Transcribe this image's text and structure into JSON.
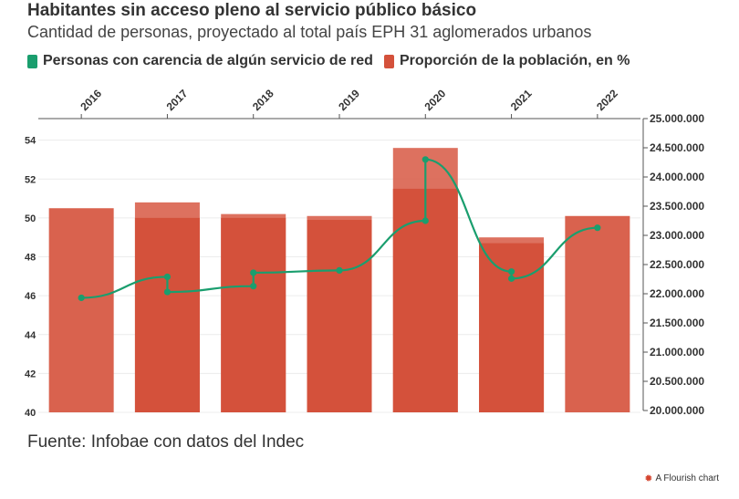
{
  "header": {
    "title": "Habitantes sin acceso pleno al servicio público básico",
    "subtitle": "Cantidad de personas, proyectado al total país EPH 31 aglomerados urbanos"
  },
  "legend": {
    "items": [
      {
        "label": "Personas con carencia de algún servicio de red",
        "color": "#1a9e6e"
      },
      {
        "label": "Proporción de la población, en %",
        "color": "#d4513b"
      }
    ]
  },
  "footer": {
    "source": "Fuente: Infobae con datos del Indec",
    "brand": "A Flourish chart"
  },
  "chart_data": {
    "type": "bar",
    "categories": [
      "2016",
      "2017",
      "2018",
      "2019",
      "2020",
      "2021",
      "2022"
    ],
    "left_axis": {
      "ticks": [
        "40",
        "42",
        "44",
        "46",
        "48",
        "50",
        "52",
        "54"
      ],
      "range": [
        40,
        54.5
      ]
    },
    "right_axis": {
      "ticks": [
        "20.000.000",
        "20.500.000",
        "21.000.000",
        "21.500.000",
        "22.000.000",
        "22.500.000",
        "23.000.000",
        "23.500.000",
        "24.000.000",
        "24.500.000",
        "25.000.000"
      ],
      "range": [
        20000000,
        25000000
      ]
    },
    "bars": [
      {
        "category": "2016",
        "values": [
          50.5
        ]
      },
      {
        "category": "2017",
        "values": [
          50.0,
          50.8
        ]
      },
      {
        "category": "2018",
        "values": [
          50.0,
          50.2
        ]
      },
      {
        "category": "2019",
        "values": [
          49.9,
          50.1
        ]
      },
      {
        "category": "2020",
        "values": [
          51.5,
          53.6
        ]
      },
      {
        "category": "2021",
        "values": [
          48.7,
          49.0
        ]
      },
      {
        "category": "2022",
        "values": [
          50.1
        ]
      }
    ],
    "line": [
      {
        "category": "2016",
        "points": [
          21930000
        ]
      },
      {
        "category": "2017",
        "points": [
          22290000,
          22030000
        ]
      },
      {
        "category": "2018",
        "points": [
          22130000,
          22360000
        ]
      },
      {
        "category": "2019",
        "points": [
          22400000
        ]
      },
      {
        "category": "2020",
        "points": [
          23250000,
          24300000
        ]
      },
      {
        "category": "2021",
        "points": [
          22380000,
          22260000
        ]
      },
      {
        "category": "2022",
        "points": [
          23130000
        ]
      }
    ],
    "colors": {
      "bar": "#d4513b",
      "bar_light": "#d9624e",
      "line": "#1a9e6e"
    }
  }
}
